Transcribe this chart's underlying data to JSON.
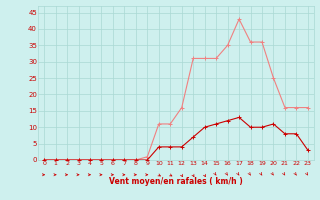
{
  "x": [
    0,
    1,
    2,
    3,
    4,
    5,
    6,
    7,
    8,
    9,
    10,
    11,
    12,
    13,
    14,
    15,
    16,
    17,
    18,
    19,
    20,
    21,
    22,
    23
  ],
  "rafales": [
    0,
    0,
    0,
    0,
    0,
    0,
    0,
    0,
    0,
    1,
    11,
    11,
    16,
    31,
    31,
    31,
    35,
    43,
    36,
    36,
    25,
    16,
    16,
    16
  ],
  "moyen_vals": [
    0,
    0,
    0,
    0,
    0,
    0,
    0,
    0,
    0,
    0,
    4,
    4,
    4,
    7,
    10,
    11,
    12,
    13,
    10,
    10,
    11,
    8,
    8,
    3
  ],
  "line_color_rafales": "#f08080",
  "line_color_moyen": "#cc0000",
  "bg_color": "#cef0ee",
  "grid_color": "#aad8d4",
  "xlabel": "Vent moyen/en rafales ( km/h )",
  "xlabel_color": "#cc0000",
  "tick_color": "#cc0000",
  "ylim": [
    0,
    47
  ],
  "xlim": [
    -0.5,
    23.5
  ],
  "yticks": [
    0,
    5,
    10,
    15,
    20,
    25,
    30,
    35,
    40,
    45
  ],
  "xticks": [
    0,
    1,
    2,
    3,
    4,
    5,
    6,
    7,
    8,
    9,
    10,
    11,
    12,
    13,
    14,
    15,
    16,
    17,
    18,
    19,
    20,
    21,
    22,
    23
  ],
  "arrow_dirs_low": [
    0,
    0,
    0,
    0,
    0,
    0,
    0,
    0,
    0,
    0,
    0,
    0,
    0,
    1,
    1,
    1,
    1,
    1,
    1,
    1,
    1,
    1,
    1,
    1
  ]
}
